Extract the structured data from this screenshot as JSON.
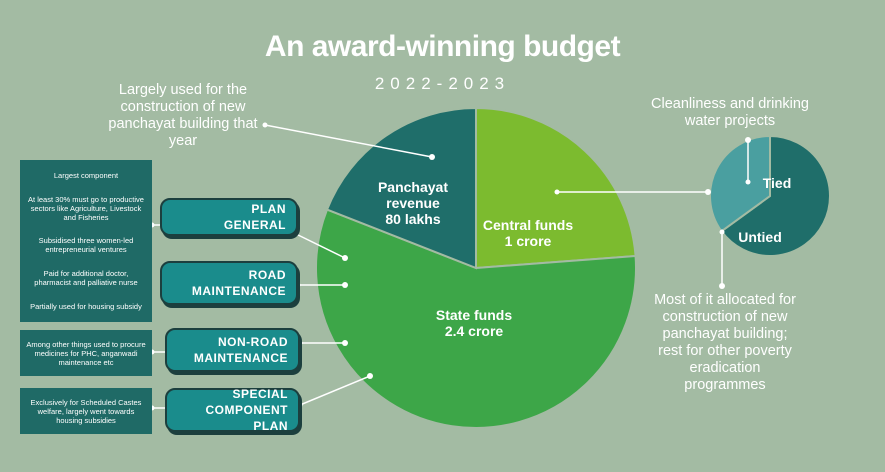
{
  "title": "An award-winning budget",
  "subtitle": "2022-2023",
  "chart_data": [
    {
      "type": "pie",
      "categories": [
        "Central funds",
        "State funds",
        "Panchayat revenue"
      ],
      "values": [
        100,
        240,
        80
      ],
      "value_labels": [
        "1 crore",
        "2.4 crore",
        "80 lakhs"
      ],
      "colors": [
        "#7cbb2f",
        "#3da648",
        "#1f6e6a"
      ]
    },
    {
      "type": "pie",
      "categories": [
        "Tied",
        "Untied"
      ],
      "values": [
        65,
        35
      ],
      "colors": [
        "#1f6e6a",
        "#4a9fa0"
      ]
    }
  ],
  "annotations": {
    "panchayat": "Largely used for the construction of new panchayat building that year",
    "tied": "Cleanliness and drinking water projects",
    "untied": "Most of it allocated for construction of new panchayat building; rest for other poverty eradication programmes"
  },
  "components": [
    {
      "label": "PLAN GENERAL",
      "notes": [
        "Largest component",
        "At least 30% must go to productive sectors like Agriculture, Livestock and Fisheries",
        "Subsidised three women-led entrepreneurial ventures",
        "Paid for additional doctor, pharmacist and palliative nurse",
        "Partially used for housing subsidy"
      ]
    },
    {
      "label": "ROAD MAINTENANCE",
      "notes": []
    },
    {
      "label": "NON-ROAD MAINTENANCE",
      "notes": [
        "Among other things used to procure medicines for PHC, anganwadi maintenance etc"
      ]
    },
    {
      "label": "SPECIAL COMPONENT PLAN",
      "notes": [
        "Exclusively for Scheduled Castes welfare, largely went towards housing subsidies"
      ]
    }
  ]
}
